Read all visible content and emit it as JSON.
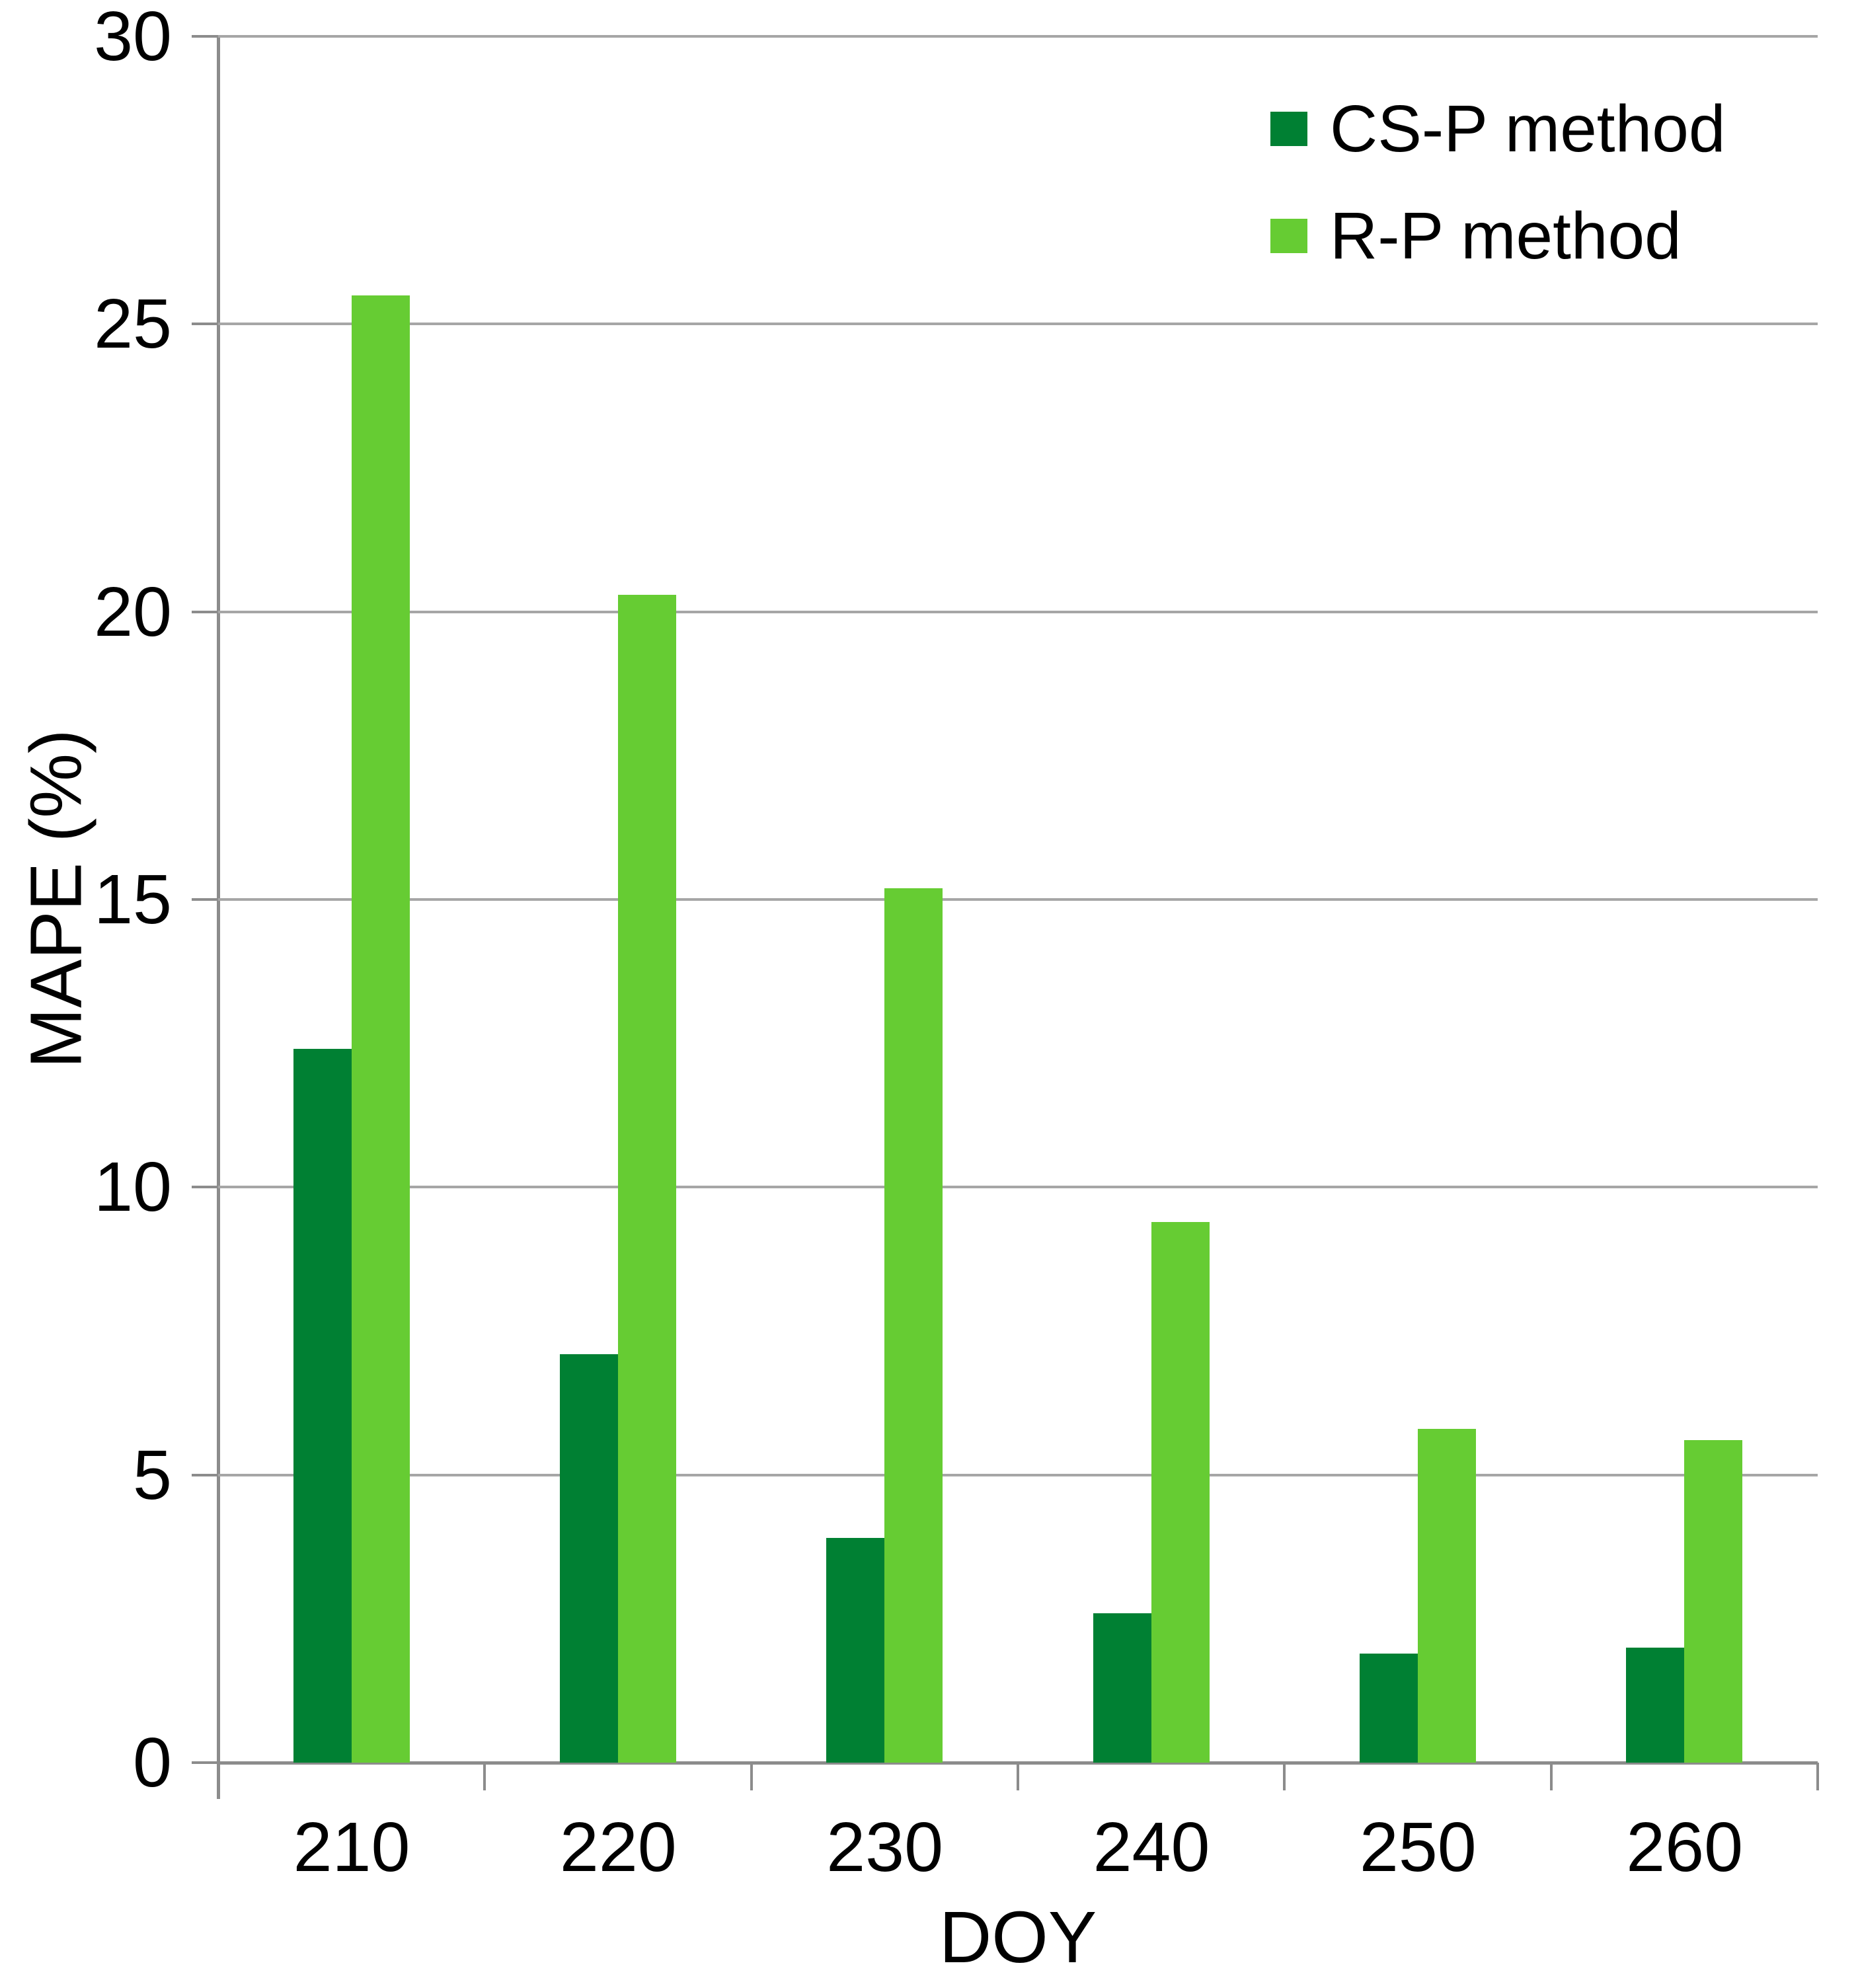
{
  "chart_data": {
    "type": "bar",
    "title": "",
    "xlabel": "DOY",
    "ylabel": "MAPE (%)",
    "categories": [
      "210",
      "220",
      "230",
      "240",
      "250",
      "260"
    ],
    "series": [
      {
        "name": "CS-P method",
        "color": "#008033",
        "values": [
          12.4,
          7.1,
          3.9,
          2.6,
          1.9,
          2.0
        ]
      },
      {
        "name": "R-P method",
        "color": "#66CC33",
        "values": [
          25.5,
          20.3,
          15.2,
          9.4,
          5.8,
          5.6
        ]
      }
    ],
    "ylim": [
      0,
      30
    ],
    "yticks": [
      "0",
      "5",
      "10",
      "15",
      "20",
      "25",
      "30"
    ],
    "grid": "horizontal",
    "legend_position": "top-right"
  },
  "colors": {
    "gridline": "#A6A6A6",
    "axis": "#8C8C8C",
    "text": "#000000",
    "background": "#FFFFFF"
  }
}
